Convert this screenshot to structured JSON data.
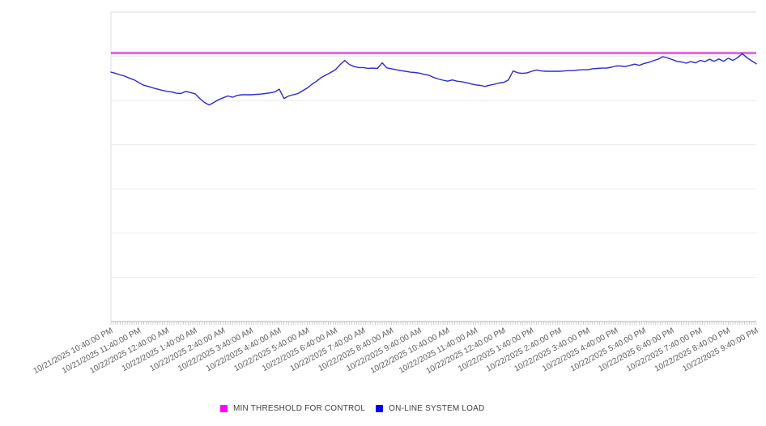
{
  "chart_data": {
    "type": "line",
    "title": "",
    "xlabel": "",
    "ylabel": "",
    "ylim": [
      0,
      100
    ],
    "grid_divisions": 7,
    "grid_on": true,
    "legend_position": "bottom",
    "x_start": "10/21/2025 10:40:00 PM",
    "x_end": "10/22/2025 9:40:00 PM",
    "x_total_minutes": 1380,
    "minor_tick_interval_minutes": 5,
    "x_tick_labels": [
      "10/21/2025 10:40:00 PM",
      "10/21/2025 11:40:00 PM",
      "10/22/2025 12:40:00 AM",
      "10/22/2025 1:40:00 AM",
      "10/22/2025 2:40:00 AM",
      "10/22/2025 3:40:00 AM",
      "10/22/2025 4:40:00 AM",
      "10/22/2025 5:40:00 AM",
      "10/22/2025 6:40:00 AM",
      "10/22/2025 7:40:00 AM",
      "10/22/2025 8:40:00 AM",
      "10/22/2025 9:40:00 AM",
      "10/22/2025 10:40:00 AM",
      "10/22/2025 11:40:00 AM",
      "10/22/2025 12:40:00 PM",
      "10/22/2025 1:40:00 PM",
      "10/22/2025 2:40:00 PM",
      "10/22/2025 3:40:00 PM",
      "10/22/2025 4:40:00 PM",
      "10/22/2025 5:40:00 PM",
      "10/22/2025 6:40:00 PM",
      "10/22/2025 7:40:00 PM",
      "10/22/2025 8:40:00 PM",
      "10/22/2025 9:40:00 PM"
    ],
    "series": [
      {
        "name": "MIN THRESHOLD FOR CONTROL",
        "type": "threshold",
        "color": "#d924d9",
        "value": 86.8
      },
      {
        "name": "ON-LINE SYSTEM LOAD",
        "type": "line",
        "color": "#2b2bd0",
        "interval_minutes": 10,
        "values": [
          80.6,
          80.2,
          79.7,
          79.3,
          78.6,
          78.1,
          77.2,
          76.4,
          76.0,
          75.5,
          75.1,
          74.7,
          74.4,
          74.2,
          73.8,
          73.7,
          74.4,
          74.0,
          73.6,
          72.1,
          70.8,
          70.0,
          70.8,
          71.7,
          72.3,
          72.9,
          72.5,
          73.1,
          73.3,
          73.3,
          73.3,
          73.4,
          73.5,
          73.7,
          73.9,
          74.2,
          75.1,
          72.1,
          72.9,
          73.3,
          73.7,
          74.6,
          75.5,
          76.7,
          77.7,
          78.9,
          79.7,
          80.5,
          81.4,
          83.0,
          84.4,
          83.1,
          82.4,
          82.1,
          82.1,
          81.8,
          81.9,
          81.8,
          83.6,
          82.0,
          81.7,
          81.4,
          81.1,
          80.9,
          80.6,
          80.5,
          80.3,
          79.9,
          79.6,
          78.9,
          78.4,
          78.0,
          77.7,
          78.1,
          77.7,
          77.5,
          77.2,
          76.8,
          76.5,
          76.3,
          76.0,
          76.4,
          76.7,
          77.1,
          77.3,
          78.1,
          81.0,
          80.4,
          80.2,
          80.4,
          80.9,
          81.3,
          81.0,
          80.9,
          80.9,
          80.9,
          80.9,
          81.0,
          81.1,
          81.1,
          81.3,
          81.4,
          81.4,
          81.7,
          81.8,
          81.9,
          81.9,
          82.2,
          82.6,
          82.6,
          82.4,
          82.8,
          83.2,
          82.8,
          83.4,
          83.8,
          84.3,
          84.8,
          85.6,
          85.2,
          84.7,
          84.1,
          83.9,
          83.5,
          84.0,
          83.6,
          84.4,
          84.0,
          84.8,
          84.1,
          84.9,
          84.1,
          85.1,
          84.4,
          85.3,
          86.6,
          85.3,
          84.3,
          83.3
        ]
      }
    ]
  },
  "legend": {
    "items": [
      {
        "label": "MIN THRESHOLD FOR CONTROL",
        "color": "#ff00ff"
      },
      {
        "label": "ON-LINE SYSTEM LOAD",
        "color": "#0000ee"
      }
    ]
  }
}
